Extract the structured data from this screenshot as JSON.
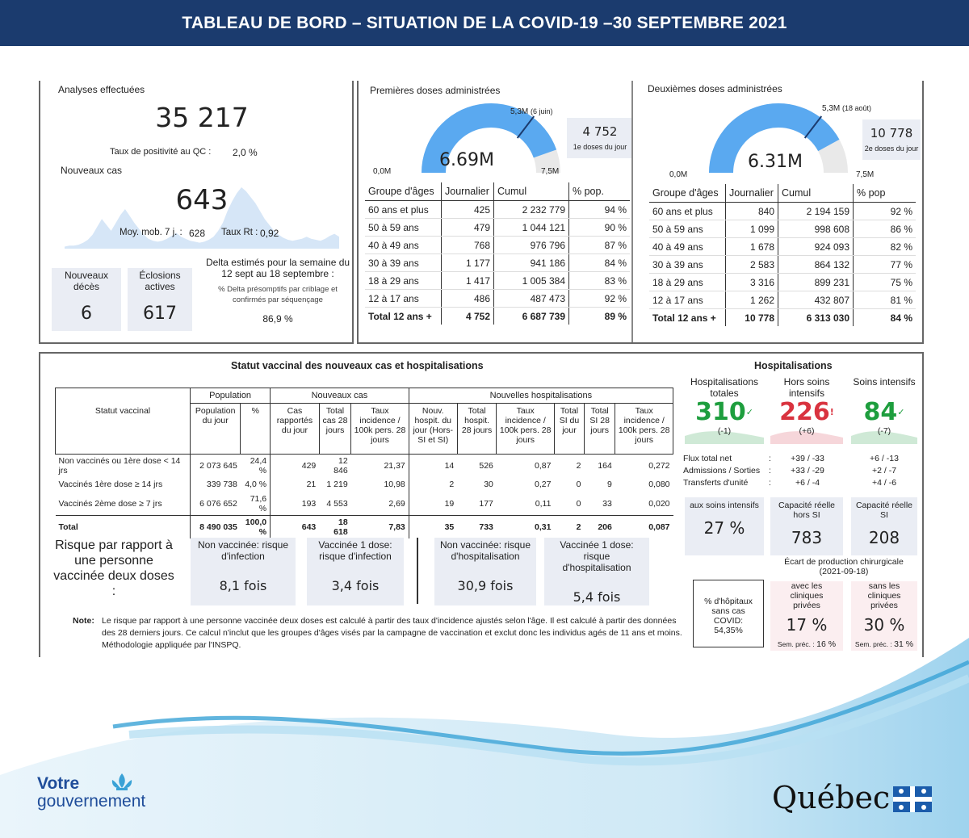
{
  "header": {
    "title": "TABLEAU DE BORD – SITUATION DE LA COVID-19 –30 SEPTEMBRE 2021"
  },
  "analyses": {
    "label": "Analyses effectuées",
    "value": "35 217",
    "positivite_label": "Taux de positivité au QC :",
    "positivite_value": "2,0 %",
    "nouveaux_cas_label": "Nouveaux cas",
    "nouveaux_cas_value": "643",
    "moy_mob_label": "Moy. mob. 7 j. :",
    "moy_mob_value": "628",
    "rt_label": "Taux Rt :",
    "rt_value": "0,92",
    "sparkline": [
      2,
      3,
      3,
      4,
      6,
      9,
      14,
      22,
      30,
      24,
      18,
      26,
      34,
      40,
      33,
      26,
      20,
      14,
      10,
      8,
      7,
      8,
      10,
      13,
      16,
      12,
      10,
      8,
      7,
      6,
      7,
      9,
      12,
      18,
      26,
      38,
      48,
      56,
      62,
      58,
      52,
      46,
      38,
      30,
      24,
      18,
      14,
      11,
      9,
      8,
      9,
      10,
      12,
      10,
      9,
      8,
      10,
      13,
      15,
      12
    ]
  },
  "deces": {
    "label": "Nouveaux décès",
    "value": "6"
  },
  "eclosions": {
    "label": "Éclosions actives",
    "value": "617"
  },
  "delta": {
    "title": "Delta estimés pour la semaine du 12 sept au 18 septembre :",
    "subtitle": "% Delta présomptifs par criblage et confirmés par séquençage",
    "value": "86,9 %"
  },
  "premieres": {
    "title": "Premières doses administrées",
    "gauge_value": "6.69M",
    "fraction": 0.892,
    "target_fraction": 0.707,
    "target_label": "5,3M",
    "target_note": "(6 juin)",
    "min_label": "0,0M",
    "max_label": "7,5M",
    "card_value": "4 752",
    "card_label": "1e doses du jour",
    "headers": [
      "Groupe d'âges",
      "Journalier",
      "Cumul",
      "% pop."
    ],
    "rows": [
      [
        "60 ans et plus",
        "425",
        "2 232 779",
        "94 %"
      ],
      [
        "50 à 59 ans",
        "479",
        "1 044 121",
        "90 %"
      ],
      [
        "40 à 49 ans",
        "768",
        "976 796",
        "87 %"
      ],
      [
        "30 à 39 ans",
        "1 177",
        "941 186",
        "84 %"
      ],
      [
        "18 à 29 ans",
        "1 417",
        "1 005 384",
        "83 %"
      ],
      [
        "12 à 17 ans",
        "486",
        "487 473",
        "92 %"
      ]
    ],
    "total": [
      "Total 12 ans +",
      "4 752",
      "6 687 739",
      "89 %"
    ]
  },
  "deuxiemes": {
    "title": "Deuxièmes doses administrées",
    "gauge_value": "6.31M",
    "fraction": 0.841,
    "target_fraction": 0.707,
    "target_label": "5,3M",
    "target_note": "(18 août)",
    "min_label": "0,0M",
    "max_label": "7,5M",
    "card_value": "10 778",
    "card_label": "2e doses du jour",
    "headers": [
      "Groupe d'âges",
      "Journalier",
      "Cumul",
      "% pop"
    ],
    "rows": [
      [
        "60 ans et plus",
        "840",
        "2 194 159",
        "92 %"
      ],
      [
        "50 à 59 ans",
        "1 099",
        "998 608",
        "86 %"
      ],
      [
        "40 à 49 ans",
        "1 678",
        "924 093",
        "82 %"
      ],
      [
        "30 à 39 ans",
        "2 583",
        "864 132",
        "77 %"
      ],
      [
        "18 à 29 ans",
        "3 316",
        "899 231",
        "75 %"
      ],
      [
        "12 à 17 ans",
        "1 262",
        "432 807",
        "81 %"
      ]
    ],
    "total": [
      "Total 12 ans +",
      "10 778",
      "6 313 030",
      "84 %"
    ]
  },
  "statut": {
    "title": "Statut vaccinal des nouveaux cas et hospitalisations",
    "group_population": "Population",
    "group_cas": "Nouveaux cas",
    "group_hosp": "Nouvelles hospitalisations",
    "columns": [
      "Statut vaccinal",
      "Population du jour",
      "%",
      "Cas rapportés du jour",
      "Total cas 28 jours",
      "Taux incidence / 100k pers. 28 jours",
      "Nouv. hospit. du jour (Hors-SI et SI)",
      "Total hospit. 28 jours",
      "Taux incidence / 100k pers. 28 jours",
      "Total SI du jour",
      "Total SI 28 jours",
      "Taux incidence / 100k pers. 28 jours"
    ],
    "rows": [
      [
        "Non vaccinés ou 1ère dose < 14 jrs",
        "2 073 645",
        "24,4 %",
        "429",
        "12 846",
        "21,37",
        "14",
        "526",
        "0,87",
        "2",
        "164",
        "0,272"
      ],
      [
        "Vaccinés 1ère dose ≥ 14 jrs",
        "339 738",
        "4,0 %",
        "21",
        "1 219",
        "10,98",
        "2",
        "30",
        "0,27",
        "0",
        "9",
        "0,080"
      ],
      [
        "Vaccinés 2ème dose ≥ 7 jrs",
        "6 076 652",
        "71,6 %",
        "193",
        "4 553",
        "2,69",
        "19",
        "177",
        "0,11",
        "0",
        "33",
        "0,020"
      ]
    ],
    "total": [
      "Total",
      "8 490 035",
      "100,0 %",
      "643",
      "18 618",
      "7,83",
      "35",
      "733",
      "0,31",
      "2",
      "206",
      "0,087"
    ]
  },
  "risque": {
    "title": "Risque par rapport à une personne vaccinée deux doses :",
    "cards": [
      {
        "label": "Non vaccinée: risque d'infection",
        "value": "8,1 fois"
      },
      {
        "label": "Vaccinée 1 dose: risque d'infection",
        "value": "3,4 fois"
      },
      {
        "label": "Non vaccinée: risque d'hospitalisation",
        "value": "30,9 fois"
      },
      {
        "label": "Vaccinée 1 dose: risque d'hospitalisation",
        "value": "5,4 fois"
      }
    ]
  },
  "note": {
    "label": "Note:",
    "text": "Le risque par rapport à une personne vaccinée deux doses est calculé à partir des taux d'incidence ajustés selon l'âge. Il est calculé à partir des données des 28 derniers jours. Ce calcul n'inclut que les groupes d'âges visés par la campagne de vaccination et exclut donc les individus agés de 11 ans et moins. Méthodologie appliquée par l'INSPQ."
  },
  "hosp": {
    "title": "Hospitalisations",
    "cols": [
      {
        "label": "Hospitalisations totales",
        "value": "310",
        "mark": "✓",
        "delta": "(-1)",
        "color": "#1e9e3e"
      },
      {
        "label": "Hors soins intensifs",
        "value": "226",
        "mark": "!",
        "delta": "(+6)",
        "color": "#d9333f"
      },
      {
        "label": "Soins intensifs",
        "value": "84",
        "mark": "✓",
        "delta": "(-7)",
        "color": "#1e9e3e"
      }
    ],
    "flux": [
      {
        "label": "Flux total net",
        "a": "+39 / -33",
        "b": "+6 / -13"
      },
      {
        "label": "Admissions / Sorties",
        "a": "+33 / -29",
        "b": "+2 / -7"
      },
      {
        "label": "Transferts d'unité",
        "a": "+6 / -4",
        "b": "+4 / -6"
      }
    ],
    "cap_si_label": "aux soins intensifs",
    "cap_si_value": "27 %",
    "cap_hors_label": "Capacité réelle hors SI",
    "cap_hors_value": "783",
    "cap_si2_label": "Capacité réelle SI",
    "cap_si2_value": "208",
    "ecart_label": "Écart de production chirurgicale (2021-09-18)",
    "sans_cas_label": "% d'hôpitaux sans cas COVID:",
    "sans_cas_value": "54,35%",
    "avec_label": "avec les cliniques privées",
    "avec_value": "17 %",
    "avec_prec_label": "Sem. préc. :",
    "avec_prec_value": "16 %",
    "sans_label": "sans les cliniques privées",
    "sans_value": "30 %",
    "sans_prec_label": "Sem. préc. :",
    "sans_prec_value": "31 %"
  },
  "footer": {
    "votre": "Votre",
    "gouvernement": "gouvernement",
    "quebec": "Québec"
  }
}
